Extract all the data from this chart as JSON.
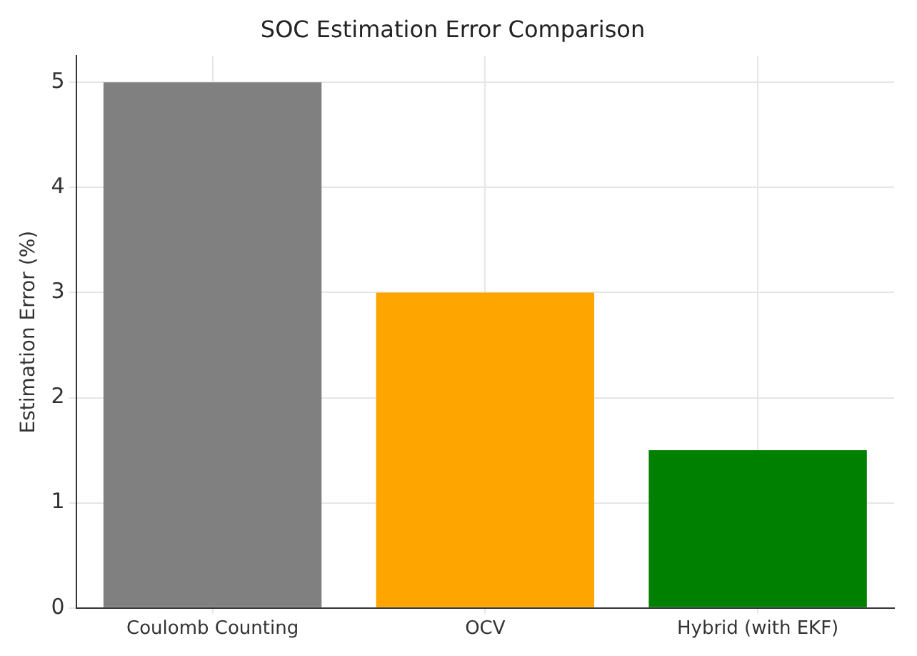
{
  "chart_data": {
    "type": "bar",
    "title": "SOC Estimation Error Comparison",
    "ylabel": "Estimation Error (%)",
    "categories": [
      "Coulomb Counting",
      "OCV",
      "Hybrid (with EKF)"
    ],
    "values": [
      5,
      3,
      1.5
    ],
    "colors": [
      "#808080",
      "#ffa500",
      "#008000"
    ],
    "ylim": [
      0,
      5.25
    ],
    "yticks": [
      0,
      1,
      2,
      3,
      4,
      5
    ],
    "grid": true
  }
}
